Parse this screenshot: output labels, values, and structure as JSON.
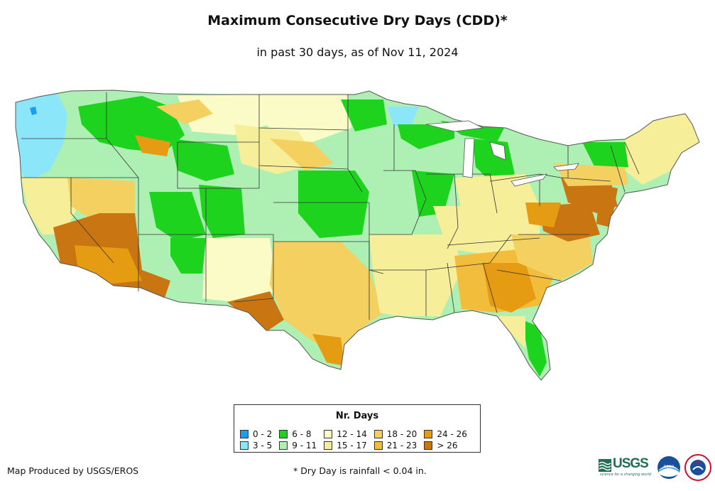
{
  "title": "Maximum Consecutive Dry Days (CDD)*",
  "subtitle": "in past 30 days, as of Nov 11, 2024",
  "legend": {
    "title": "Nr. Days",
    "items": [
      {
        "label": "0 - 2",
        "color": "#1a9cf0"
      },
      {
        "label": "3 - 5",
        "color": "#8ae6f8"
      },
      {
        "label": "6 - 8",
        "color": "#1ed31e"
      },
      {
        "label": "9 - 11",
        "color": "#aef0b4"
      },
      {
        "label": "12 - 14",
        "color": "#fbfbc8"
      },
      {
        "label": "15 - 17",
        "color": "#f6ee98"
      },
      {
        "label": "18 - 20",
        "color": "#f3d060"
      },
      {
        "label": "21 - 23",
        "color": "#f3bd3c"
      },
      {
        "label": "24 - 26",
        "color": "#e59b12"
      },
      {
        "label": "> 26",
        "color": "#c97612"
      }
    ]
  },
  "credit": "Map Produced by USGS/EROS",
  "footnote": "* Dry Day is rainfall < 0.04 in.",
  "logos": {
    "usgs_text": "USGS",
    "usgs_tagline": "science for a changing world",
    "noaa_text": "noaa"
  }
}
